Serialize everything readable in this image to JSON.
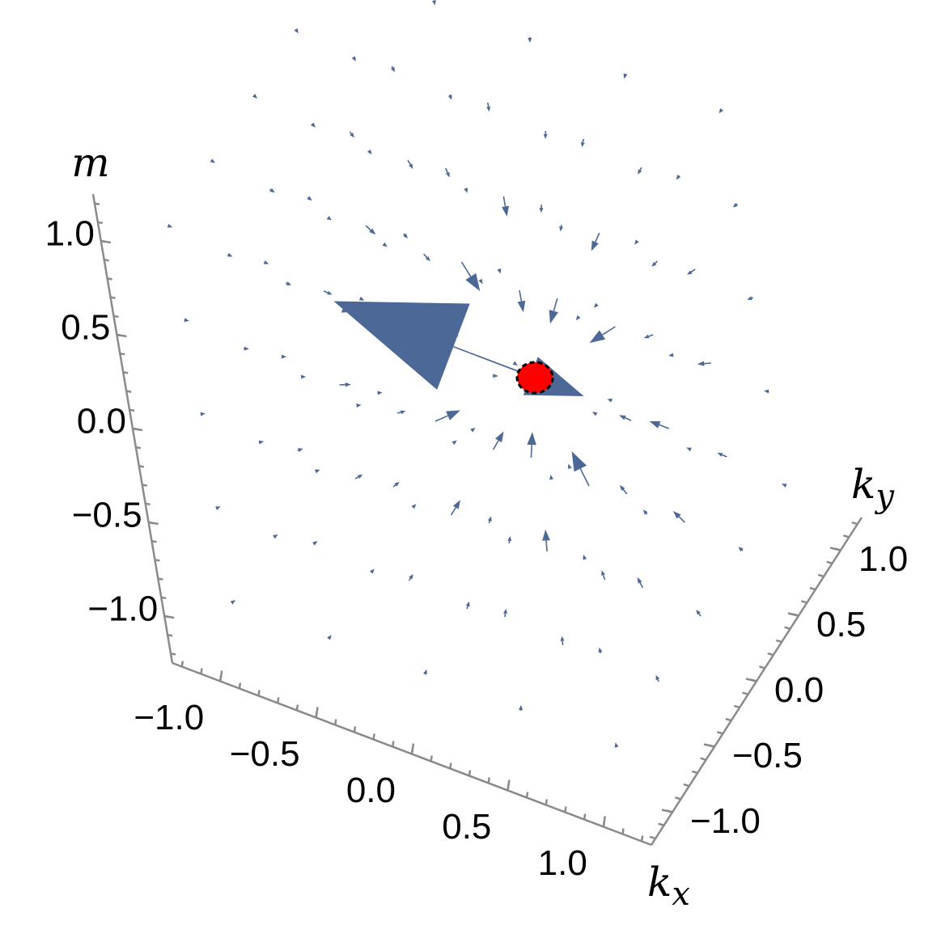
{
  "chart_data": {
    "type": "vector3d",
    "xlabel": {
      "main": "k",
      "sub": "x"
    },
    "ylabel": {
      "main": "k",
      "sub": "y"
    },
    "zlabel": "m",
    "xlim": [
      -1.25,
      1.25
    ],
    "ylim": [
      -1.25,
      1.25
    ],
    "zlim": [
      -1.25,
      1.25
    ],
    "xticks": [
      {
        "value": -1,
        "label": "−1.0"
      },
      {
        "value": -0.5,
        "label": "−0.5"
      },
      {
        "value": 0,
        "label": "0.0"
      },
      {
        "value": 0.5,
        "label": "0.5"
      },
      {
        "value": 1,
        "label": "1.0"
      }
    ],
    "yticks": [
      {
        "value": -1,
        "label": "−1.0"
      },
      {
        "value": -0.5,
        "label": "−0.5"
      },
      {
        "value": 0,
        "label": "0.0"
      },
      {
        "value": 0.5,
        "label": "0.5"
      },
      {
        "value": 1,
        "label": "1.0"
      }
    ],
    "zticks": [
      {
        "value": -1,
        "label": "−1.0"
      },
      {
        "value": -0.5,
        "label": "−0.5"
      },
      {
        "value": 0,
        "label": "0.0"
      },
      {
        "value": 0.5,
        "label": "0.5"
      },
      {
        "value": 1,
        "label": "1.0"
      }
    ],
    "arrow_color": "#4c6897",
    "point": {
      "x": 0.3,
      "y": 0,
      "z": 0,
      "color": "#ff0000"
    }
  }
}
